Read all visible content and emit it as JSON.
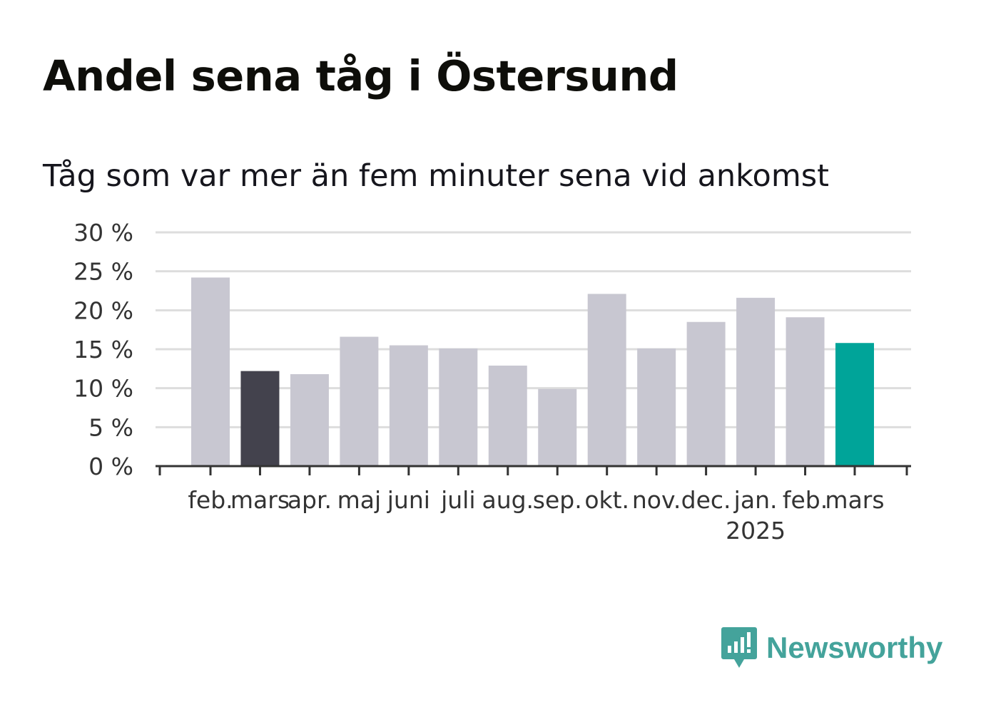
{
  "title": "Andel sena tåg i Östersund",
  "subtitle": "Tåg som var mer än fem minuter sena vid ankomst",
  "brand": {
    "name": "Newsworthy",
    "icon": "newsworthy-logo-icon",
    "color": "#44a39b"
  },
  "colors": {
    "default_bar": "#c8c7d1",
    "previous_year_bar": "#43424d",
    "current_bar": "#00a499",
    "grid": "#dddddd",
    "axis": "#333333"
  },
  "chart_data": {
    "type": "bar",
    "title": "Andel sena tåg i Östersund",
    "subtitle": "Tåg som var mer än fem minuter sena vid ankomst",
    "categories": [
      "feb.",
      "mars",
      "apr.",
      "maj",
      "juni",
      "juli",
      "aug.",
      "sep.",
      "okt.",
      "nov.",
      "dec.",
      "jan.",
      "feb.",
      "mars"
    ],
    "year_labels": [
      "",
      "",
      "",
      "",
      "",
      "",
      "",
      "",
      "",
      "",
      "",
      "2025",
      "",
      ""
    ],
    "values": [
      24.2,
      12.2,
      11.8,
      16.6,
      15.5,
      15.1,
      12.9,
      9.9,
      22.1,
      15.1,
      18.5,
      21.6,
      19.1,
      15.8
    ],
    "highlight": [
      "default",
      "previous_year",
      "default",
      "default",
      "default",
      "default",
      "default",
      "default",
      "default",
      "default",
      "default",
      "default",
      "default",
      "current"
    ],
    "y_ticks": [
      "0 %",
      "5 %",
      "10 %",
      "15 %",
      "20 %",
      "25 %",
      "30 %"
    ],
    "ylim": [
      0,
      30
    ],
    "grid": true,
    "legend": "none"
  }
}
